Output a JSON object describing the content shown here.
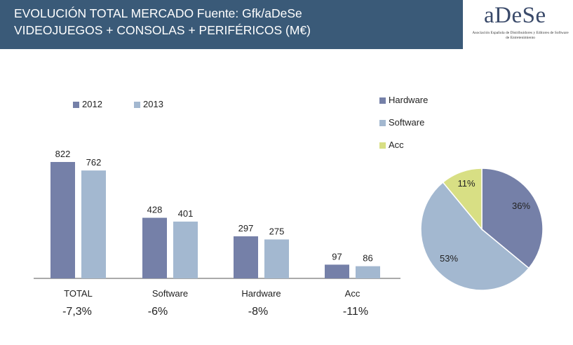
{
  "header": {
    "title_line1": "EVOLUCIÓN TOTAL MERCADO Fuente: Gfk/aDeSe",
    "title_line2": "VIDEOJUEGOS + CONSOLAS + PERIFÉRICOS (M€)",
    "logo_text": "aDeSe",
    "logo_sub": "Asociación Española de Distribuidores y Editores de Software de Entretenimiento"
  },
  "colors": {
    "c2012": "#7580a8",
    "c2013": "#a3b8d0",
    "hardware": "#7580a8",
    "software": "#a3b8d0",
    "acc": "#d8df84"
  },
  "chart_data": [
    {
      "type": "bar",
      "categories": [
        "TOTAL",
        "Software",
        "Hardware",
        "Acc"
      ],
      "series": [
        {
          "name": "2012",
          "values": [
            822,
            428,
            297,
            97
          ]
        },
        {
          "name": "2013",
          "values": [
            762,
            401,
            275,
            86
          ]
        }
      ],
      "changes": [
        "-7,3%",
        "-6%",
        "-8%",
        "-11%"
      ],
      "legend": "top",
      "grid": false,
      "ylim": [
        0,
        900
      ]
    },
    {
      "type": "pie",
      "labels": [
        "Hardware",
        "Software",
        "Acc"
      ],
      "values": [
        36,
        53,
        11
      ],
      "value_labels": [
        "36%",
        "53%",
        "11%"
      ],
      "legend": "top-left"
    }
  ]
}
